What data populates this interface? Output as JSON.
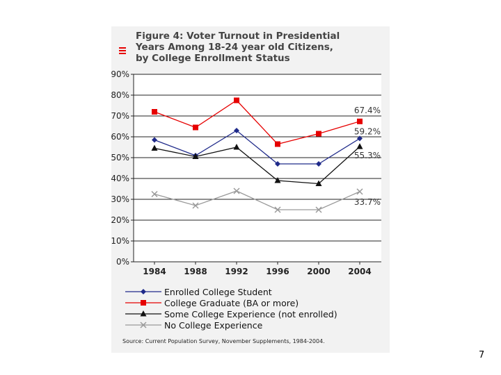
{
  "slide": {
    "page_number": "7",
    "source": "Source:  Current Population Survey, November Supplements, 1984-2004."
  },
  "colors": {
    "enrolled": "#1f2a8a",
    "graduate": "#e60000",
    "some_college": "#111111",
    "no_college": "#999999",
    "axis": "#222222"
  },
  "chart_data": {
    "type": "line",
    "title_lines": [
      "Figure 4: Voter Turnout in Presidential",
      "Years Among 18-24 year old Citizens,",
      "by College Enrollment Status"
    ],
    "x": [
      "1984",
      "1988",
      "1992",
      "1996",
      "2000",
      "2004"
    ],
    "ylim": [
      0,
      90
    ],
    "yticks": [
      "0%",
      "10%",
      "20%",
      "30%",
      "40%",
      "50%",
      "60%",
      "70%",
      "80%",
      "90%"
    ],
    "series": [
      {
        "key": "enrolled",
        "name": "Enrolled College Student",
        "marker": "diamond",
        "values": [
          58.5,
          51,
          63,
          47,
          47,
          59.2
        ],
        "end_label": "59.2%"
      },
      {
        "key": "graduate",
        "name": "College Graduate (BA or more)",
        "marker": "square",
        "values": [
          72,
          64.5,
          77.5,
          56.5,
          61.5,
          67.4
        ],
        "end_label": "67.4%"
      },
      {
        "key": "some_college",
        "name": "Some College Experience (not enrolled)",
        "marker": "triangle",
        "values": [
          54.5,
          50.5,
          55,
          39,
          37.5,
          55.3
        ],
        "end_label": "55.3%"
      },
      {
        "key": "no_college",
        "name": "No College Experience",
        "marker": "x",
        "values": [
          32.5,
          27,
          34,
          25,
          25,
          33.7
        ],
        "end_label": "33.7%"
      }
    ]
  }
}
